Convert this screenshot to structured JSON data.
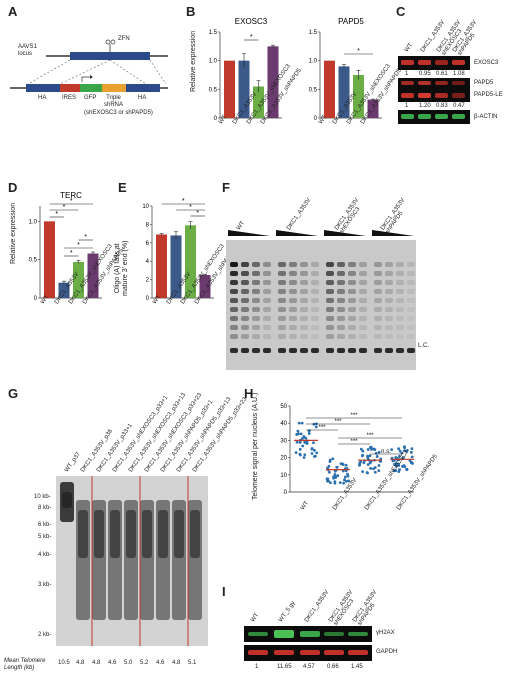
{
  "panels": {
    "A": {
      "label": "A",
      "locus": "AAVS1\nlocus",
      "zfn": "ZFN",
      "ha_left": "HA",
      "ires": "IRES",
      "gfp": "GFP",
      "triple": "Triple\nshRNA",
      "ha_right": "HA",
      "shrna_note": "(shEXOSC3 or shPAPD5)",
      "colors": {
        "ha": "#2a4a8a",
        "ires": "#c0392b",
        "gfp": "#3aa64a",
        "triple": "#e8a030"
      }
    },
    "B": {
      "label": "B",
      "ylabel": "Relative expression",
      "categories": [
        "WT",
        "DKC1_A353V",
        "DKC1_A353V_shEXOSC3",
        "DKC1_A353V_shPAPD5"
      ],
      "colors": [
        "#c0392b",
        "#3b5a8a",
        "#6aae45",
        "#6b3a6e"
      ]
    },
    "C": {
      "label": "C",
      "lanes": [
        "WT",
        "DKC1_A353V",
        "DKC1_A353V\nshEXOSC3",
        "DKC1_A353V\nshPAPD5"
      ],
      "blots": [
        {
          "name": "EXOSC3",
          "quant": [
            "1",
            "0.95",
            "0.61",
            "1.08"
          ]
        },
        {
          "name": "PAPD5",
          "quant": []
        },
        {
          "name": "PAPD5-LE",
          "quant": [
            "1",
            "1.20",
            "0.83",
            "0.47"
          ]
        },
        {
          "name": "β-ACTIN",
          "quant": []
        }
      ]
    },
    "D": {
      "label": "D"
    },
    "E": {
      "label": "E",
      "ylabel": "Oligo (A) tails at\nmature 3' end (%)"
    },
    "F": {
      "label": "F",
      "lanes": [
        "WT",
        "DKC1_A353V",
        "DKC1_A353V\nshEXOSC3",
        "DKC1_A353V\nshPAPD5"
      ],
      "lc": "L.C."
    },
    "G": {
      "label": "G",
      "lanes": [
        "WT_p37",
        "DKC1_A353V_p36",
        "DKC1_A353V_p33+1",
        "DKC1_A353V_shEXOSC3_p33+1",
        "DKC1_A353V_shEXOSC3_p33+13",
        "DKC1_A353V_shEXOSC3_p33+23",
        "DKC1_A353V_shPAPD5_p33+1",
        "DKC1_A353V_shPAPD5_p33+13",
        "DKC1_A353V_shPAPD5_p33+23"
      ],
      "markers": [
        "10 kb-",
        "8 kb-",
        "6 kb-",
        "5 kb-",
        "4 kb-",
        "3 kb-",
        "2 kb-"
      ],
      "mean_label": "Mean Telomere\nLength (kb)",
      "mean_values": [
        "10.5",
        "4.8",
        "4.8",
        "4.6",
        "5.0",
        "5.2",
        "4.6",
        "4.8",
        "5.1"
      ]
    },
    "H": {
      "label": "H",
      "ylabel": "Telomere signal per nucleus (A.U.)",
      "categories": [
        "WT",
        "DKC1_A353V",
        "DKC1_A353V_shEXOSC3",
        "DKC1_A353V_shPAPD5"
      ],
      "sig": [
        "***",
        "***",
        "***",
        "***",
        "***",
        "n.s."
      ]
    },
    "I": {
      "label": "I",
      "lanes": [
        "WT",
        "WT_5 gy",
        "DKC1_A353V",
        "DKC1_A353V\nshEXOSC3",
        "DKC1_A353V\nshPAPD5"
      ],
      "blots": [
        "γH2AX",
        "GAPDH"
      ],
      "quant": [
        "1",
        "11.65",
        "4.57",
        "0.66",
        "1.45"
      ]
    }
  },
  "chart_data": [
    {
      "type": "bar",
      "title": "EXOSC3",
      "categories": [
        "WT",
        "DKC1_A353V",
        "DKC1_A353V_shEXOSC3",
        "DKC1_A353V_shPAPD5"
      ],
      "values": [
        1.0,
        1.0,
        0.55,
        1.25
      ],
      "errors": [
        0.0,
        0.12,
        0.1,
        0.02
      ],
      "ylabel": "Relative expression",
      "ylim": [
        0,
        1.5
      ],
      "yticks": [
        "0",
        "0.5",
        "1.0",
        "1.5"
      ],
      "sig": [
        "*"
      ]
    },
    {
      "type": "bar",
      "title": "PAPD5",
      "categories": [
        "WT",
        "DKC1_A353V",
        "DKC1_A353V_shEXOSC3",
        "DKC1_A353V_shPAPD5"
      ],
      "values": [
        1.0,
        0.9,
        0.75,
        0.32
      ],
      "errors": [
        0.0,
        0.03,
        0.08,
        0.01
      ],
      "ylabel": "Relative expression",
      "ylim": [
        0,
        1.5
      ],
      "yticks": [
        "0",
        "0.5",
        "1.0",
        "1.5"
      ],
      "sig": [
        "*"
      ]
    },
    {
      "type": "bar",
      "title": "TERC",
      "categories": [
        "WT",
        "DKC1_A353V",
        "DKC1_A353V_shEXOSC3",
        "DKC1_A353V_shPAPD5"
      ],
      "values": [
        1.0,
        0.2,
        0.47,
        0.58
      ],
      "errors": [
        0.0,
        0.02,
        0.02,
        0.02
      ],
      "ylabel": "Relative expression",
      "ylim": [
        0,
        1.2
      ],
      "yticks": [
        "0",
        "0.5",
        "1.0"
      ],
      "sig": [
        "*",
        "*",
        "*",
        "*",
        "*",
        "*"
      ]
    },
    {
      "type": "bar",
      "categories": [
        "WT",
        "DKC1_A353V",
        "DKC1_A353V_shEXOSC3",
        "DKC1_A353V_shPAPD5"
      ],
      "values": [
        6.9,
        6.8,
        7.9,
        2.5
      ],
      "errors": [
        0.1,
        0.4,
        0.4,
        0.05
      ],
      "ylabel": "Oligo (A) tails at mature 3' end (%)",
      "ylim": [
        0,
        10
      ],
      "yticks": [
        "0",
        "2",
        "4",
        "6",
        "8",
        "10"
      ],
      "sig": [
        "*",
        "*",
        "*"
      ]
    },
    {
      "type": "scatter",
      "categories": [
        "WT",
        "DKC1_A353V",
        "DKC1_A353V_shEXOSC3",
        "DKC1_A353V_shPAPD5"
      ],
      "means": [
        30,
        13,
        18.5,
        19
      ],
      "ylabel": "Telomere signal per nucleus (A.U.)",
      "ylim": [
        0,
        50
      ],
      "yticks": [
        "0",
        "10",
        "20",
        "30",
        "40",
        "50"
      ],
      "sig": [
        "***",
        "***",
        "***",
        "***",
        "***",
        "n.s."
      ]
    }
  ]
}
